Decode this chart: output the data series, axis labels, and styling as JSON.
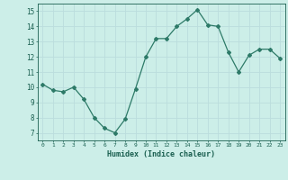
{
  "x": [
    0,
    1,
    2,
    3,
    4,
    5,
    6,
    7,
    8,
    9,
    10,
    11,
    12,
    13,
    14,
    15,
    16,
    17,
    18,
    19,
    20,
    21,
    22,
    23
  ],
  "y": [
    10.2,
    9.8,
    9.7,
    10.0,
    9.2,
    8.0,
    7.3,
    7.0,
    7.9,
    9.9,
    12.0,
    13.2,
    13.2,
    14.0,
    14.5,
    15.1,
    14.1,
    14.0,
    12.3,
    11.0,
    12.1,
    12.5,
    12.5,
    11.9
  ],
  "xlim": [
    -0.5,
    23.5
  ],
  "ylim": [
    6.5,
    15.5
  ],
  "xticks": [
    0,
    1,
    2,
    3,
    4,
    5,
    6,
    7,
    8,
    9,
    10,
    11,
    12,
    13,
    14,
    15,
    16,
    17,
    18,
    19,
    20,
    21,
    22,
    23
  ],
  "yticks": [
    7,
    8,
    9,
    10,
    11,
    12,
    13,
    14,
    15
  ],
  "xlabel": "Humidex (Indice chaleur)",
  "line_color": "#2d7a68",
  "marker": "D",
  "marker_size": 2.0,
  "bg_color": "#cceee8",
  "grid_color": "#bbdddd",
  "tick_color": "#1a5f50",
  "label_color": "#1a5f50"
}
